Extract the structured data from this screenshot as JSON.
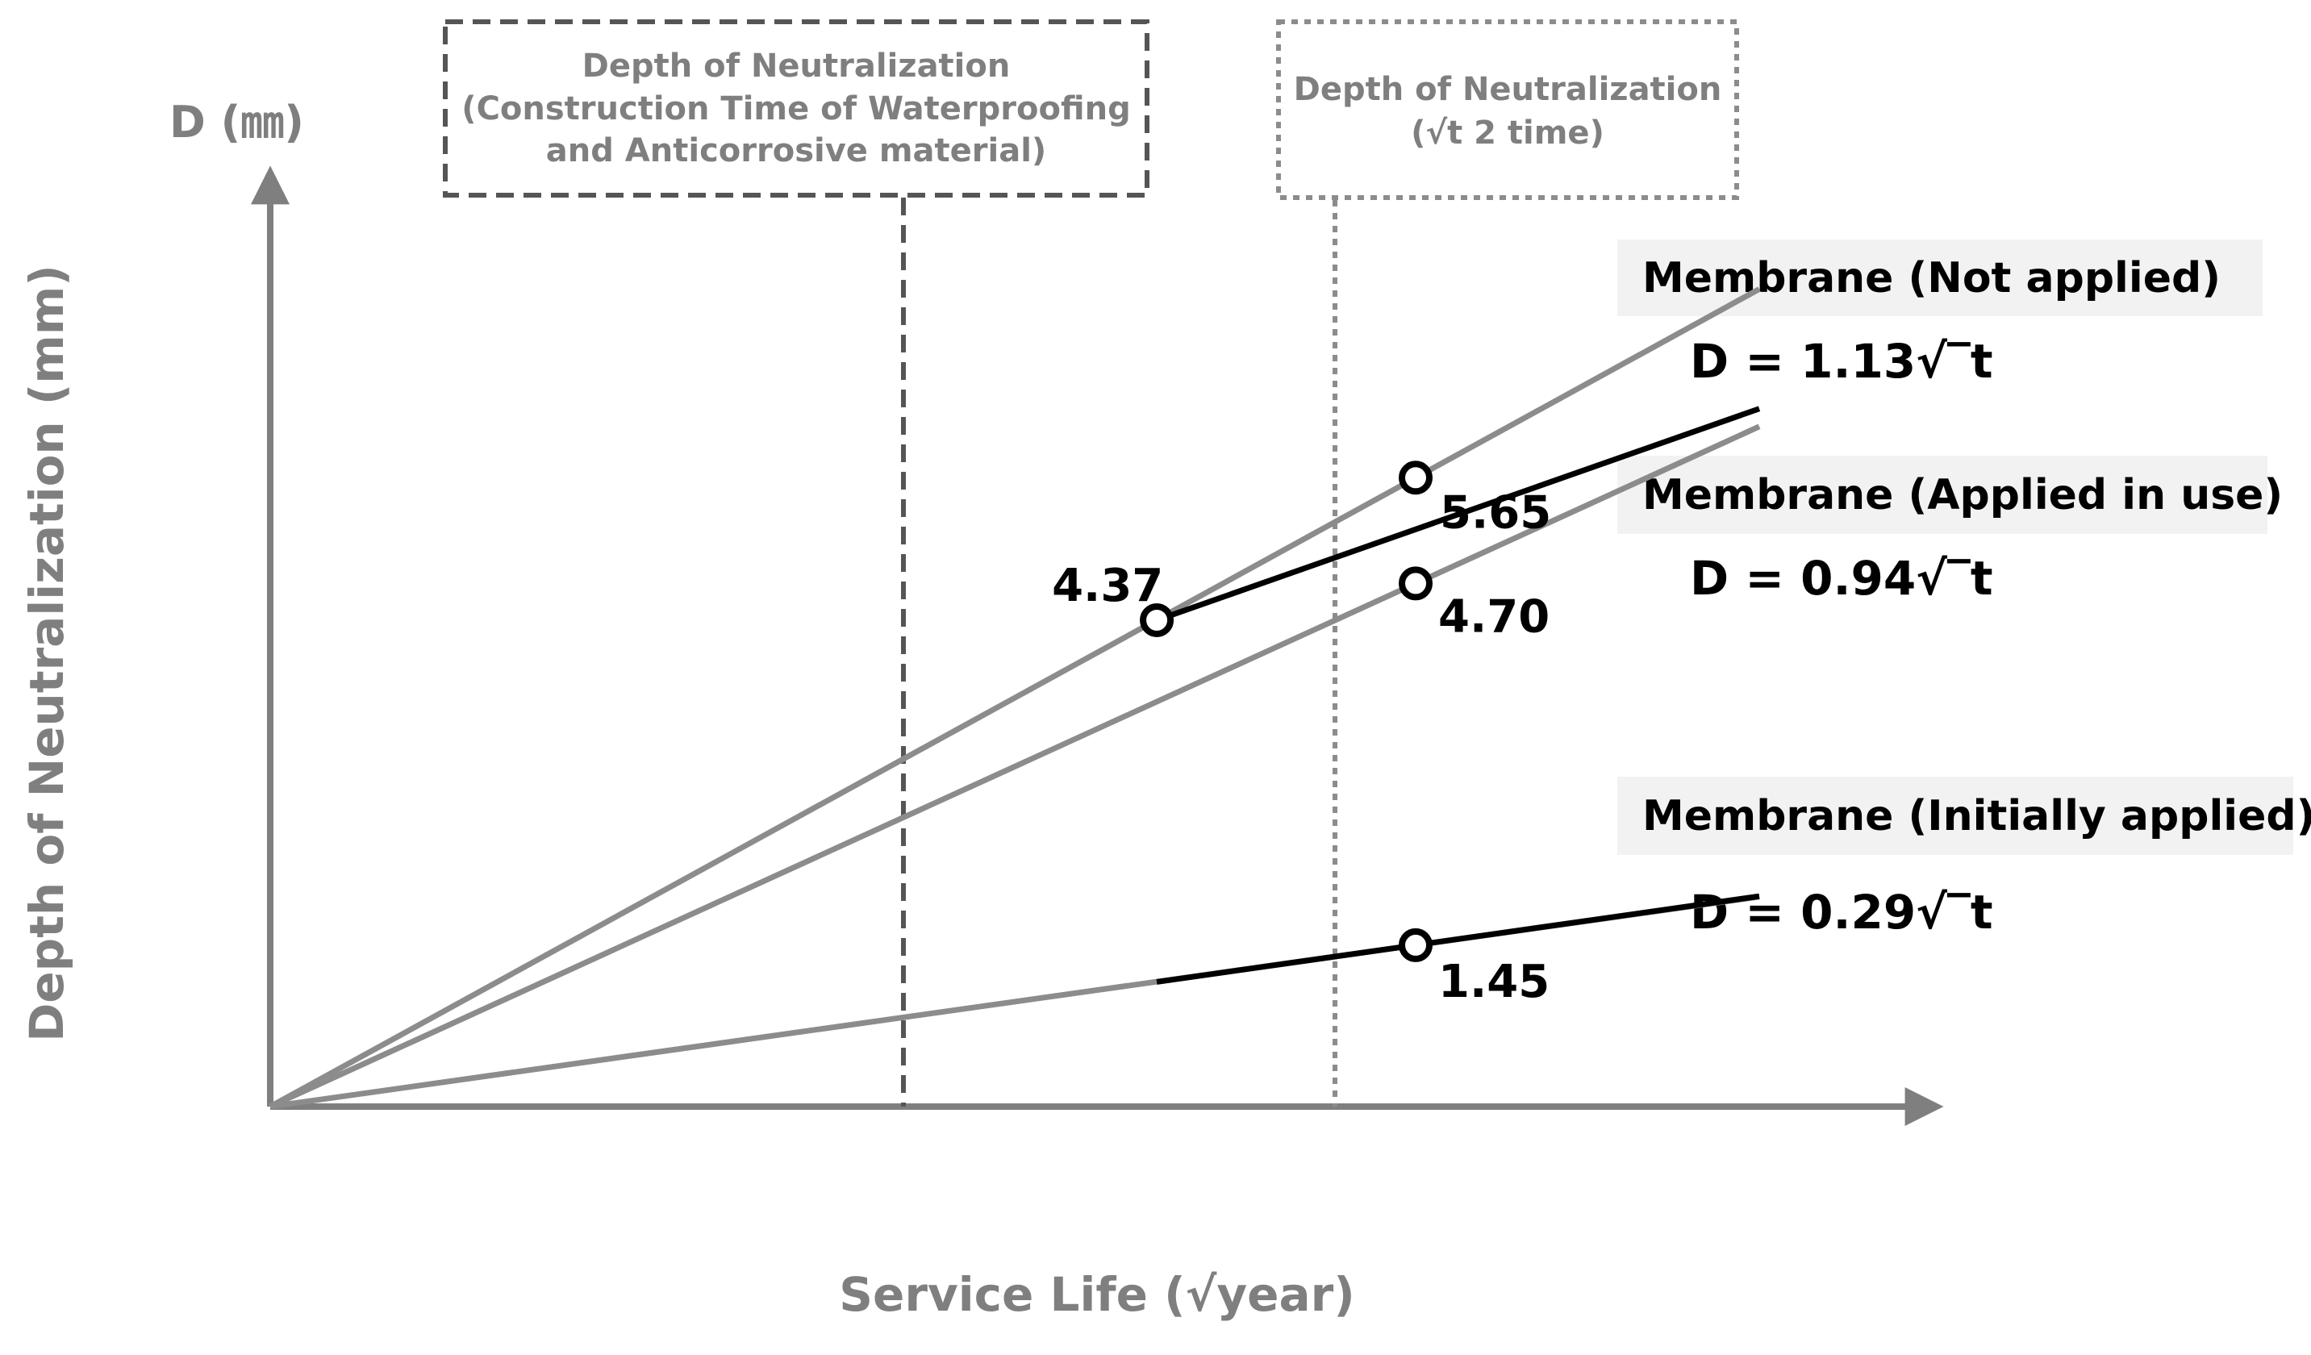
{
  "chart_data": {
    "type": "line",
    "y_unit_label": "D (㎜)",
    "xlabel": "Service Life (√year)",
    "ylabel": "Depth of Neutralization (mm)",
    "annotation_boxes": [
      {
        "style": "dashed",
        "lines": [
          "Depth of Neutralization",
          "(Construction Time of Waterproofing",
          "and Anticorrosive material)"
        ]
      },
      {
        "style": "dotted",
        "lines": [
          "Depth of Neutralization",
          "(√t 2 time)"
        ]
      }
    ],
    "reference_lines": [
      {
        "x": 3.87,
        "style": "dashed"
      },
      {
        "x": 5.0,
        "style": "dotted"
      }
    ],
    "series": [
      {
        "name": "Membrane (Not applied)",
        "equation": "D = 1.13√‾t",
        "coef": 1.13,
        "x_range": [
          0,
          6.5
        ]
      },
      {
        "name": "Membrane (Applied in use)",
        "equation": "D = 0.94√‾t",
        "coef": 0.94,
        "x_range": [
          0,
          6.5
        ],
        "segment": {
          "x": [
            3.87,
            6.5
          ],
          "y": [
            4.37,
            6.27
          ]
        }
      },
      {
        "name": "Membrane (Initially applied)",
        "equation": "D = 0.29√‾t",
        "coef": 0.29,
        "x_range": [
          0,
          6.5
        ],
        "segment": {
          "x": [
            3.87,
            6.5
          ],
          "y": [
            1.12,
            1.89
          ]
        }
      }
    ],
    "points": [
      {
        "x": 3.87,
        "y": 4.37,
        "label": "4.37"
      },
      {
        "x": 5.0,
        "y": 5.65,
        "label": "5.65"
      },
      {
        "x": 5.0,
        "y": 4.7,
        "label": "4.70"
      },
      {
        "x": 5.0,
        "y": 1.45,
        "label": "1.45"
      }
    ],
    "xlim": [
      0,
      6.5
    ],
    "ylim": [
      0,
      8.5
    ],
    "colors": {
      "model_line": "#8c8c8c",
      "segment_line": "#000000",
      "axis": "#7f7f7f",
      "legend_bg": "#f2f2f2"
    }
  }
}
